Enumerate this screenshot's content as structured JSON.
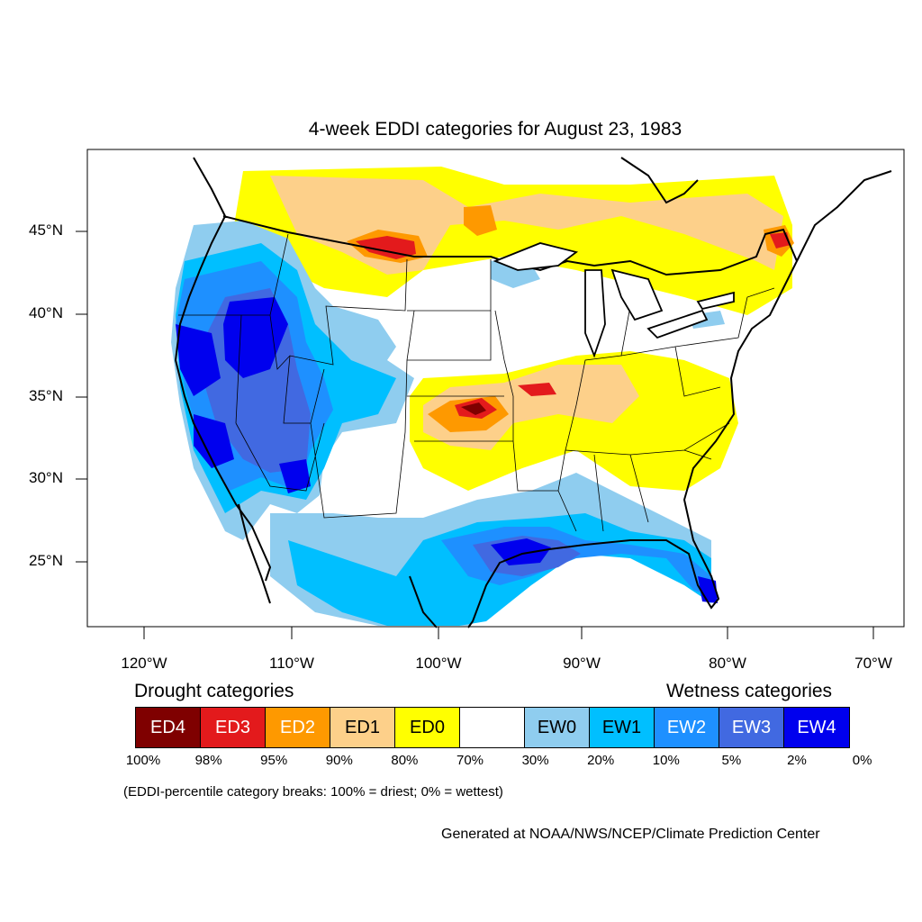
{
  "title": "4-week EDDI categories for August 23, 1983",
  "map": {
    "lat_ticks": [
      "45°N",
      "40°N",
      "35°N",
      "30°N",
      "25°N"
    ],
    "lon_ticks": [
      "120°W",
      "110°W",
      "100°W",
      "90°W",
      "80°W",
      "70°W"
    ],
    "extent": {
      "lon_min": -124,
      "lon_max": -68.5,
      "lat_min": 21,
      "lat_max": 50
    }
  },
  "legend": {
    "drought_heading": "Drought categories",
    "wetness_heading": "Wetness categories",
    "categories": [
      {
        "label": "ED4",
        "color": "#7f0000",
        "text_color": "#ffffff"
      },
      {
        "label": "ED3",
        "color": "#e31a1c",
        "text_color": "#ffffff"
      },
      {
        "label": "ED2",
        "color": "#fe9900",
        "text_color": "#ffffff"
      },
      {
        "label": "ED1",
        "color": "#fdd08a",
        "text_color": "#000000"
      },
      {
        "label": "ED0",
        "color": "#ffff00",
        "text_color": "#000000"
      },
      {
        "label": "",
        "color": "#ffffff",
        "text_color": "#000000"
      },
      {
        "label": "EW0",
        "color": "#8fcdef",
        "text_color": "#000000"
      },
      {
        "label": "EW1",
        "color": "#00bfff",
        "text_color": "#000000"
      },
      {
        "label": "EW2",
        "color": "#1e90ff",
        "text_color": "#ffffff"
      },
      {
        "label": "EW3",
        "color": "#4169e1",
        "text_color": "#ffffff"
      },
      {
        "label": "EW4",
        "color": "#0000ee",
        "text_color": "#ffffff"
      }
    ],
    "breaks": [
      "100%",
      "98%",
      "95%",
      "90%",
      "80%",
      "70%",
      "30%",
      "20%",
      "10%",
      "5%",
      "2%",
      "0%"
    ]
  },
  "note": "(EDDI-percentile category breaks: 100% = driest; 0% = wettest)",
  "credit": "Generated at NOAA/NWS/NCEP/Climate Prediction Center"
}
